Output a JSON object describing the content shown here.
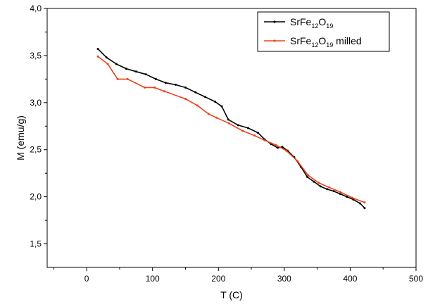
{
  "chart_data": {
    "type": "line",
    "xlabel": "T (C)",
    "ylabel": "M (emu/g)",
    "xlim": [
      -60,
      500
    ],
    "ylim": [
      1.25,
      4.0
    ],
    "x_ticks": [
      0,
      100,
      200,
      300,
      400,
      500
    ],
    "y_ticks": [
      1.5,
      2.0,
      2.5,
      3.0,
      3.5,
      4.0
    ],
    "x_tick_labels": [
      "0",
      "100",
      "200",
      "300",
      "400",
      "500"
    ],
    "y_tick_labels": [
      "1,5",
      "2,0",
      "2,5",
      "3,0",
      "3,5",
      "4,0"
    ],
    "grid": false,
    "legend_position": "top-right",
    "series": [
      {
        "name": "SrFe12O19",
        "legend": {
          "base1": "SrFe",
          "sub1": "12",
          "base2": "O",
          "sub2": "19",
          "suffix": ""
        },
        "color": "#000000",
        "x": [
          17,
          30,
          45,
          60,
          75,
          90,
          105,
          120,
          135,
          150,
          165,
          180,
          195,
          205,
          215,
          230,
          245,
          260,
          270,
          280,
          290,
          297,
          305,
          315,
          325,
          335,
          345,
          355,
          365,
          375,
          385,
          395,
          405,
          415,
          422
        ],
        "y": [
          3.57,
          3.48,
          3.41,
          3.36,
          3.33,
          3.3,
          3.25,
          3.21,
          3.19,
          3.16,
          3.11,
          3.06,
          3.01,
          2.96,
          2.82,
          2.76,
          2.73,
          2.68,
          2.61,
          2.56,
          2.52,
          2.53,
          2.49,
          2.42,
          2.32,
          2.21,
          2.16,
          2.11,
          2.08,
          2.06,
          2.03,
          2.0,
          1.97,
          1.93,
          1.88
        ]
      },
      {
        "name": "SrFe12O19 milled",
        "legend": {
          "base1": "SrFe",
          "sub1": "12",
          "base2": "O",
          "sub2": "19",
          "suffix": " milled"
        },
        "color": "#e8431b",
        "x": [
          17,
          32,
          47,
          62,
          88,
          103,
          118,
          150,
          168,
          185,
          197,
          216,
          237,
          255,
          270,
          287,
          303,
          320,
          336,
          352,
          368,
          385,
          403,
          422
        ],
        "y": [
          3.49,
          3.41,
          3.25,
          3.25,
          3.16,
          3.16,
          3.12,
          3.04,
          2.97,
          2.88,
          2.84,
          2.78,
          2.7,
          2.65,
          2.6,
          2.55,
          2.49,
          2.38,
          2.23,
          2.15,
          2.1,
          2.05,
          1.99,
          1.94
        ]
      }
    ]
  }
}
